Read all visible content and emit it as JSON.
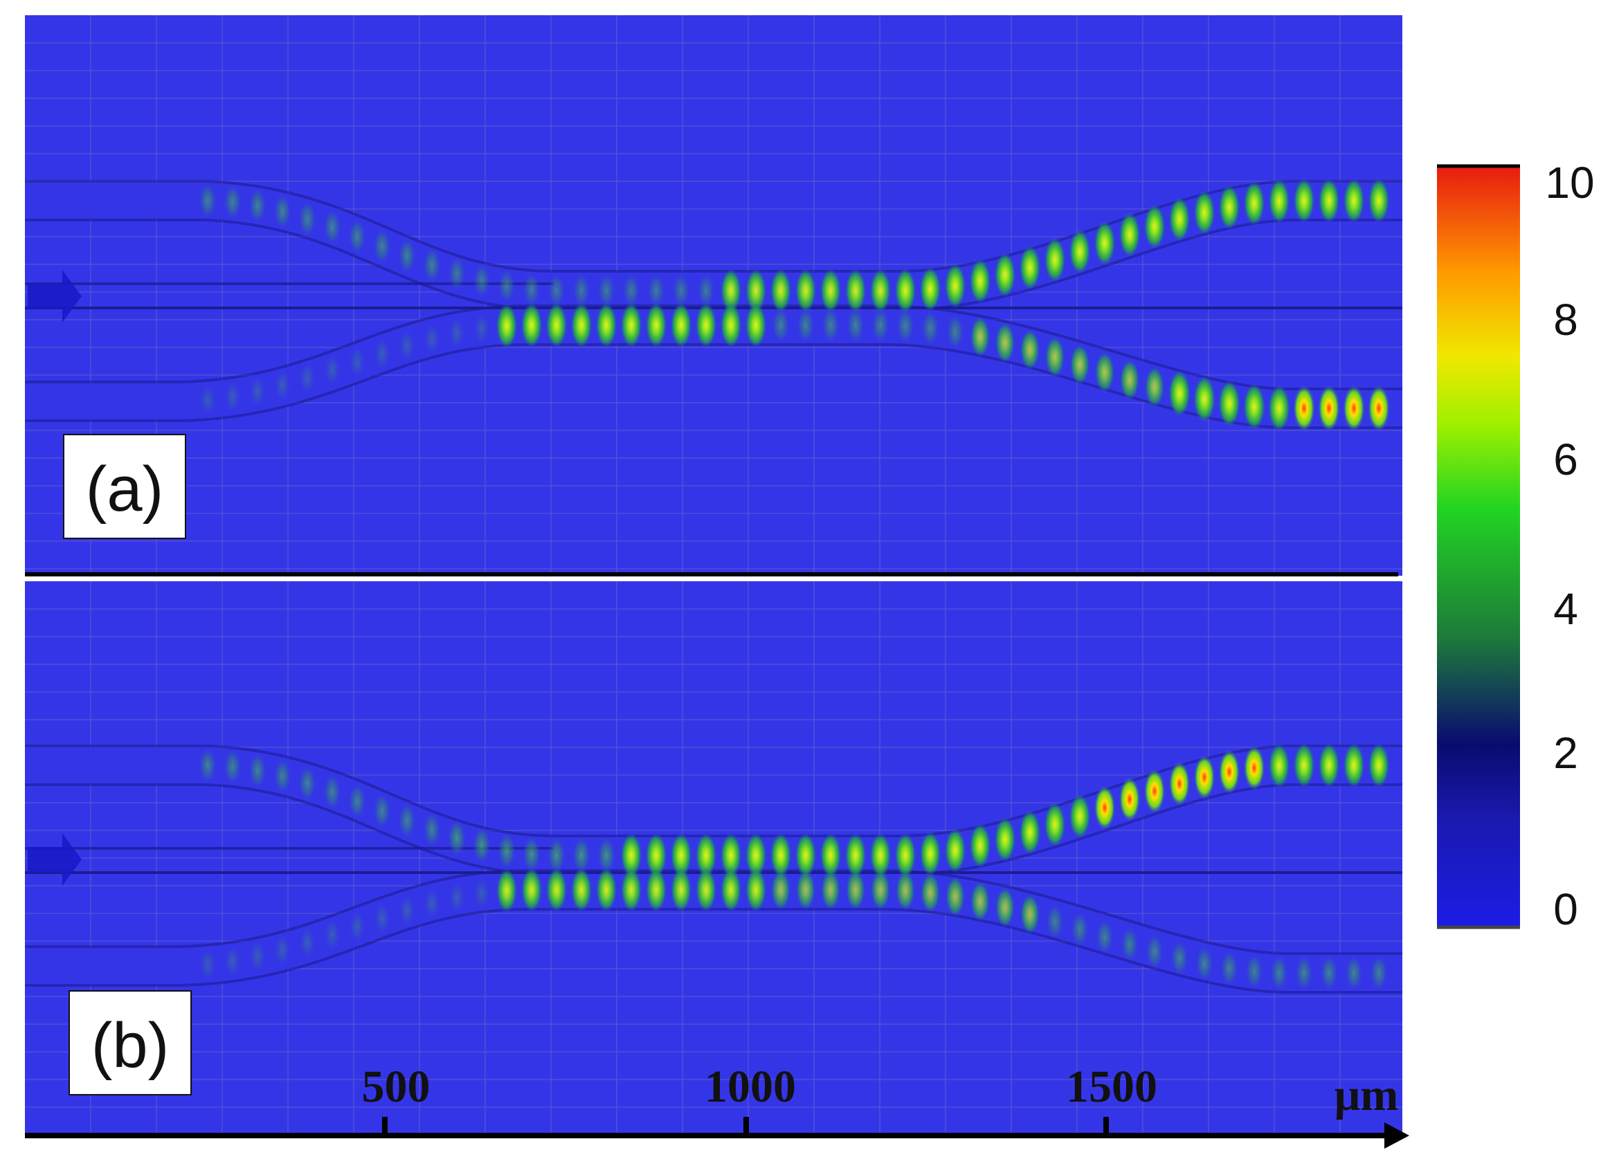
{
  "panels": [
    {
      "id": "a",
      "label": "(a)"
    },
    {
      "id": "b",
      "label": "(b)"
    }
  ],
  "axis": {
    "unit": "μm",
    "ticks": [
      "500",
      "1000",
      "1500"
    ]
  },
  "colorbar": {
    "ticks": [
      "10",
      "8",
      "6",
      "4",
      "2",
      "0"
    ],
    "colors": [
      "#1c1ce6",
      "#0a0a7a",
      "#1f8a3a",
      "#22d422",
      "#e8e800",
      "#ff8c00",
      "#e81a10"
    ]
  },
  "colors": {
    "background": "#3535e8",
    "grid": "#5a5ad0",
    "waveguide_edge": "#1a1a8c",
    "axis": "#000000"
  }
}
